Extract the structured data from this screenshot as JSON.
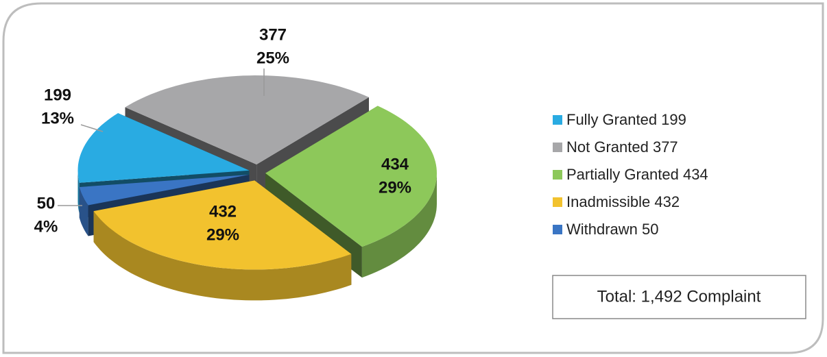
{
  "chart_data": {
    "type": "pie",
    "categories": [
      "Fully Granted 199",
      "Not Granted 377",
      "Partially Granted 434",
      "Inadmissible 432",
      "Withdrawn 50"
    ],
    "values": [
      199,
      377,
      434,
      432,
      50
    ],
    "percent_labels": [
      "13%",
      "25%",
      "29%",
      "29%",
      "4%"
    ],
    "colors": [
      "#29abe2",
      "#a7a7a9",
      "#8dc85a",
      "#f2c22e",
      "#3a75c4"
    ],
    "annotation": "Total: 1,492 Complaint"
  }
}
